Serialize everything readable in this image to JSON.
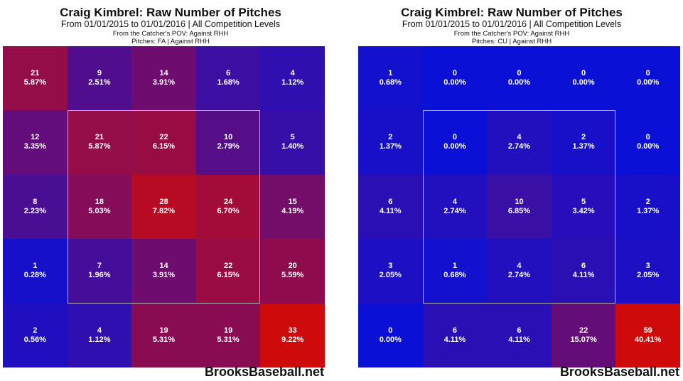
{
  "chart_data": [
    {
      "type": "heatmap",
      "title": "Craig Kimbrel: Raw Number of Pitches",
      "subtitle": "From 01/01/2015 to 01/01/2016 | All Competition Levels",
      "pov": "From the Catcher's POV:   Against RHH",
      "pitch_filter": "Pitches:  FA  |  Against RHH",
      "watermark": "BrooksBaseball.net",
      "rows": 5,
      "cols": 5,
      "counts": [
        [
          21,
          9,
          14,
          6,
          4
        ],
        [
          12,
          21,
          22,
          10,
          5
        ],
        [
          8,
          18,
          28,
          24,
          15
        ],
        [
          1,
          7,
          14,
          22,
          20
        ],
        [
          2,
          4,
          19,
          19,
          33
        ]
      ],
      "percents": [
        [
          "5.87%",
          "2.51%",
          "3.91%",
          "1.68%",
          "1.12%"
        ],
        [
          "3.35%",
          "5.87%",
          "6.15%",
          "2.79%",
          "1.40%"
        ],
        [
          "2.23%",
          "5.03%",
          "7.82%",
          "6.70%",
          "4.19%"
        ],
        [
          "0.28%",
          "1.96%",
          "3.91%",
          "6.15%",
          "5.59%"
        ],
        [
          "0.56%",
          "1.12%",
          "5.31%",
          "5.31%",
          "9.22%"
        ]
      ],
      "strike_zone": "inner 3x3",
      "colors": {
        "low": "#0b10d6",
        "high": "#cf0a0a"
      }
    },
    {
      "type": "heatmap",
      "title": "Craig Kimbrel: Raw Number of Pitches",
      "subtitle": "From 01/01/2015 to 01/01/2016 | All Competition Levels",
      "pov": "From the Catcher's POV:   Against RHH",
      "pitch_filter": "Pitches:  CU  |  Against RHH",
      "watermark": "BrooksBaseball.net",
      "rows": 5,
      "cols": 5,
      "counts": [
        [
          1,
          0,
          0,
          0,
          0
        ],
        [
          2,
          0,
          4,
          2,
          0
        ],
        [
          6,
          4,
          10,
          5,
          2
        ],
        [
          3,
          1,
          4,
          6,
          3
        ],
        [
          0,
          6,
          6,
          22,
          59
        ]
      ],
      "percents": [
        [
          "0.68%",
          "0.00%",
          "0.00%",
          "0.00%",
          "0.00%"
        ],
        [
          "1.37%",
          "0.00%",
          "2.74%",
          "1.37%",
          "0.00%"
        ],
        [
          "4.11%",
          "2.74%",
          "6.85%",
          "3.42%",
          "1.37%"
        ],
        [
          "2.05%",
          "0.68%",
          "2.74%",
          "4.11%",
          "2.05%"
        ],
        [
          "0.00%",
          "4.11%",
          "4.11%",
          "15.07%",
          "40.41%"
        ]
      ],
      "strike_zone": "inner 3x3",
      "colors": {
        "low": "#0b10d6",
        "high": "#cf0a0a"
      }
    }
  ]
}
